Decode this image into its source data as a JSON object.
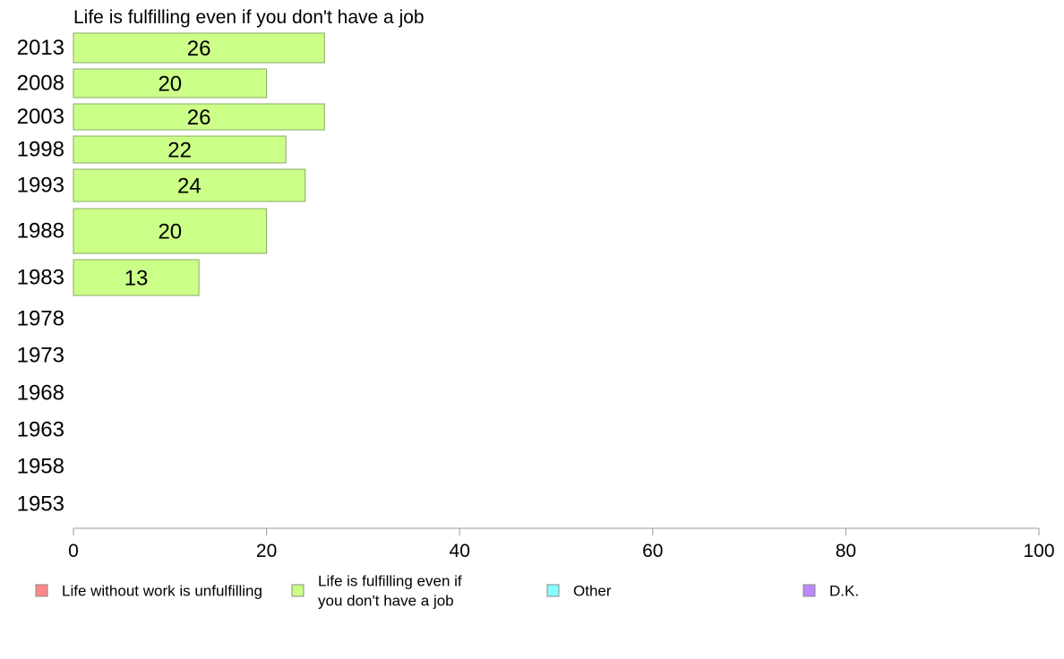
{
  "chart_data": {
    "type": "bar",
    "orientation": "horizontal",
    "stacked": true,
    "title": "Life is fulfilling even if you don't have a job",
    "xlabel": "",
    "ylabel": "",
    "xlim": [
      0,
      100
    ],
    "x_ticks": [
      0,
      20,
      40,
      60,
      80,
      100
    ],
    "categories": [
      "2013",
      "2008",
      "2003",
      "1998",
      "1993",
      "1988",
      "1983",
      "1978",
      "1973",
      "1968",
      "1963",
      "1958",
      "1953"
    ],
    "series": [
      {
        "name": "Life without work is unfulfilling",
        "color": "#ff8888",
        "values": [
          null,
          null,
          null,
          null,
          null,
          null,
          null,
          null,
          null,
          null,
          null,
          null,
          null
        ]
      },
      {
        "name": "Life is fulfilling even if you don't have a job",
        "color": "#ccff88",
        "values": [
          26,
          20,
          26,
          22,
          24,
          20,
          13,
          null,
          null,
          null,
          null,
          null,
          null
        ]
      },
      {
        "name": "Other",
        "color": "#88ffff",
        "values": [
          null,
          null,
          null,
          null,
          null,
          null,
          null,
          null,
          null,
          null,
          null,
          null,
          null
        ]
      },
      {
        "name": "D.K.",
        "color": "#bb88ff",
        "values": [
          null,
          null,
          null,
          null,
          null,
          null,
          null,
          null,
          null,
          null,
          null,
          null,
          null
        ]
      }
    ],
    "data_labels": [
      "26",
      "20",
      "26",
      "22",
      "24",
      "20",
      "13",
      "",
      "",
      "",
      "",
      "",
      ""
    ],
    "legend": {
      "position": "bottom",
      "items": [
        {
          "lines": [
            "Life without work is unfulfilling"
          ],
          "color": "#ff8888"
        },
        {
          "lines": [
            "Life is fulfilling even if",
            "you don't have a job"
          ],
          "color": "#ccff88"
        },
        {
          "lines": [
            "Other"
          ],
          "color": "#88ffff"
        },
        {
          "lines": [
            "D.K."
          ],
          "color": "#bb88ff"
        }
      ]
    },
    "grid": false
  },
  "colors": {
    "bar_stroke": "#88aa66",
    "axis": "#999999",
    "legend_stroke": "#888888"
  }
}
